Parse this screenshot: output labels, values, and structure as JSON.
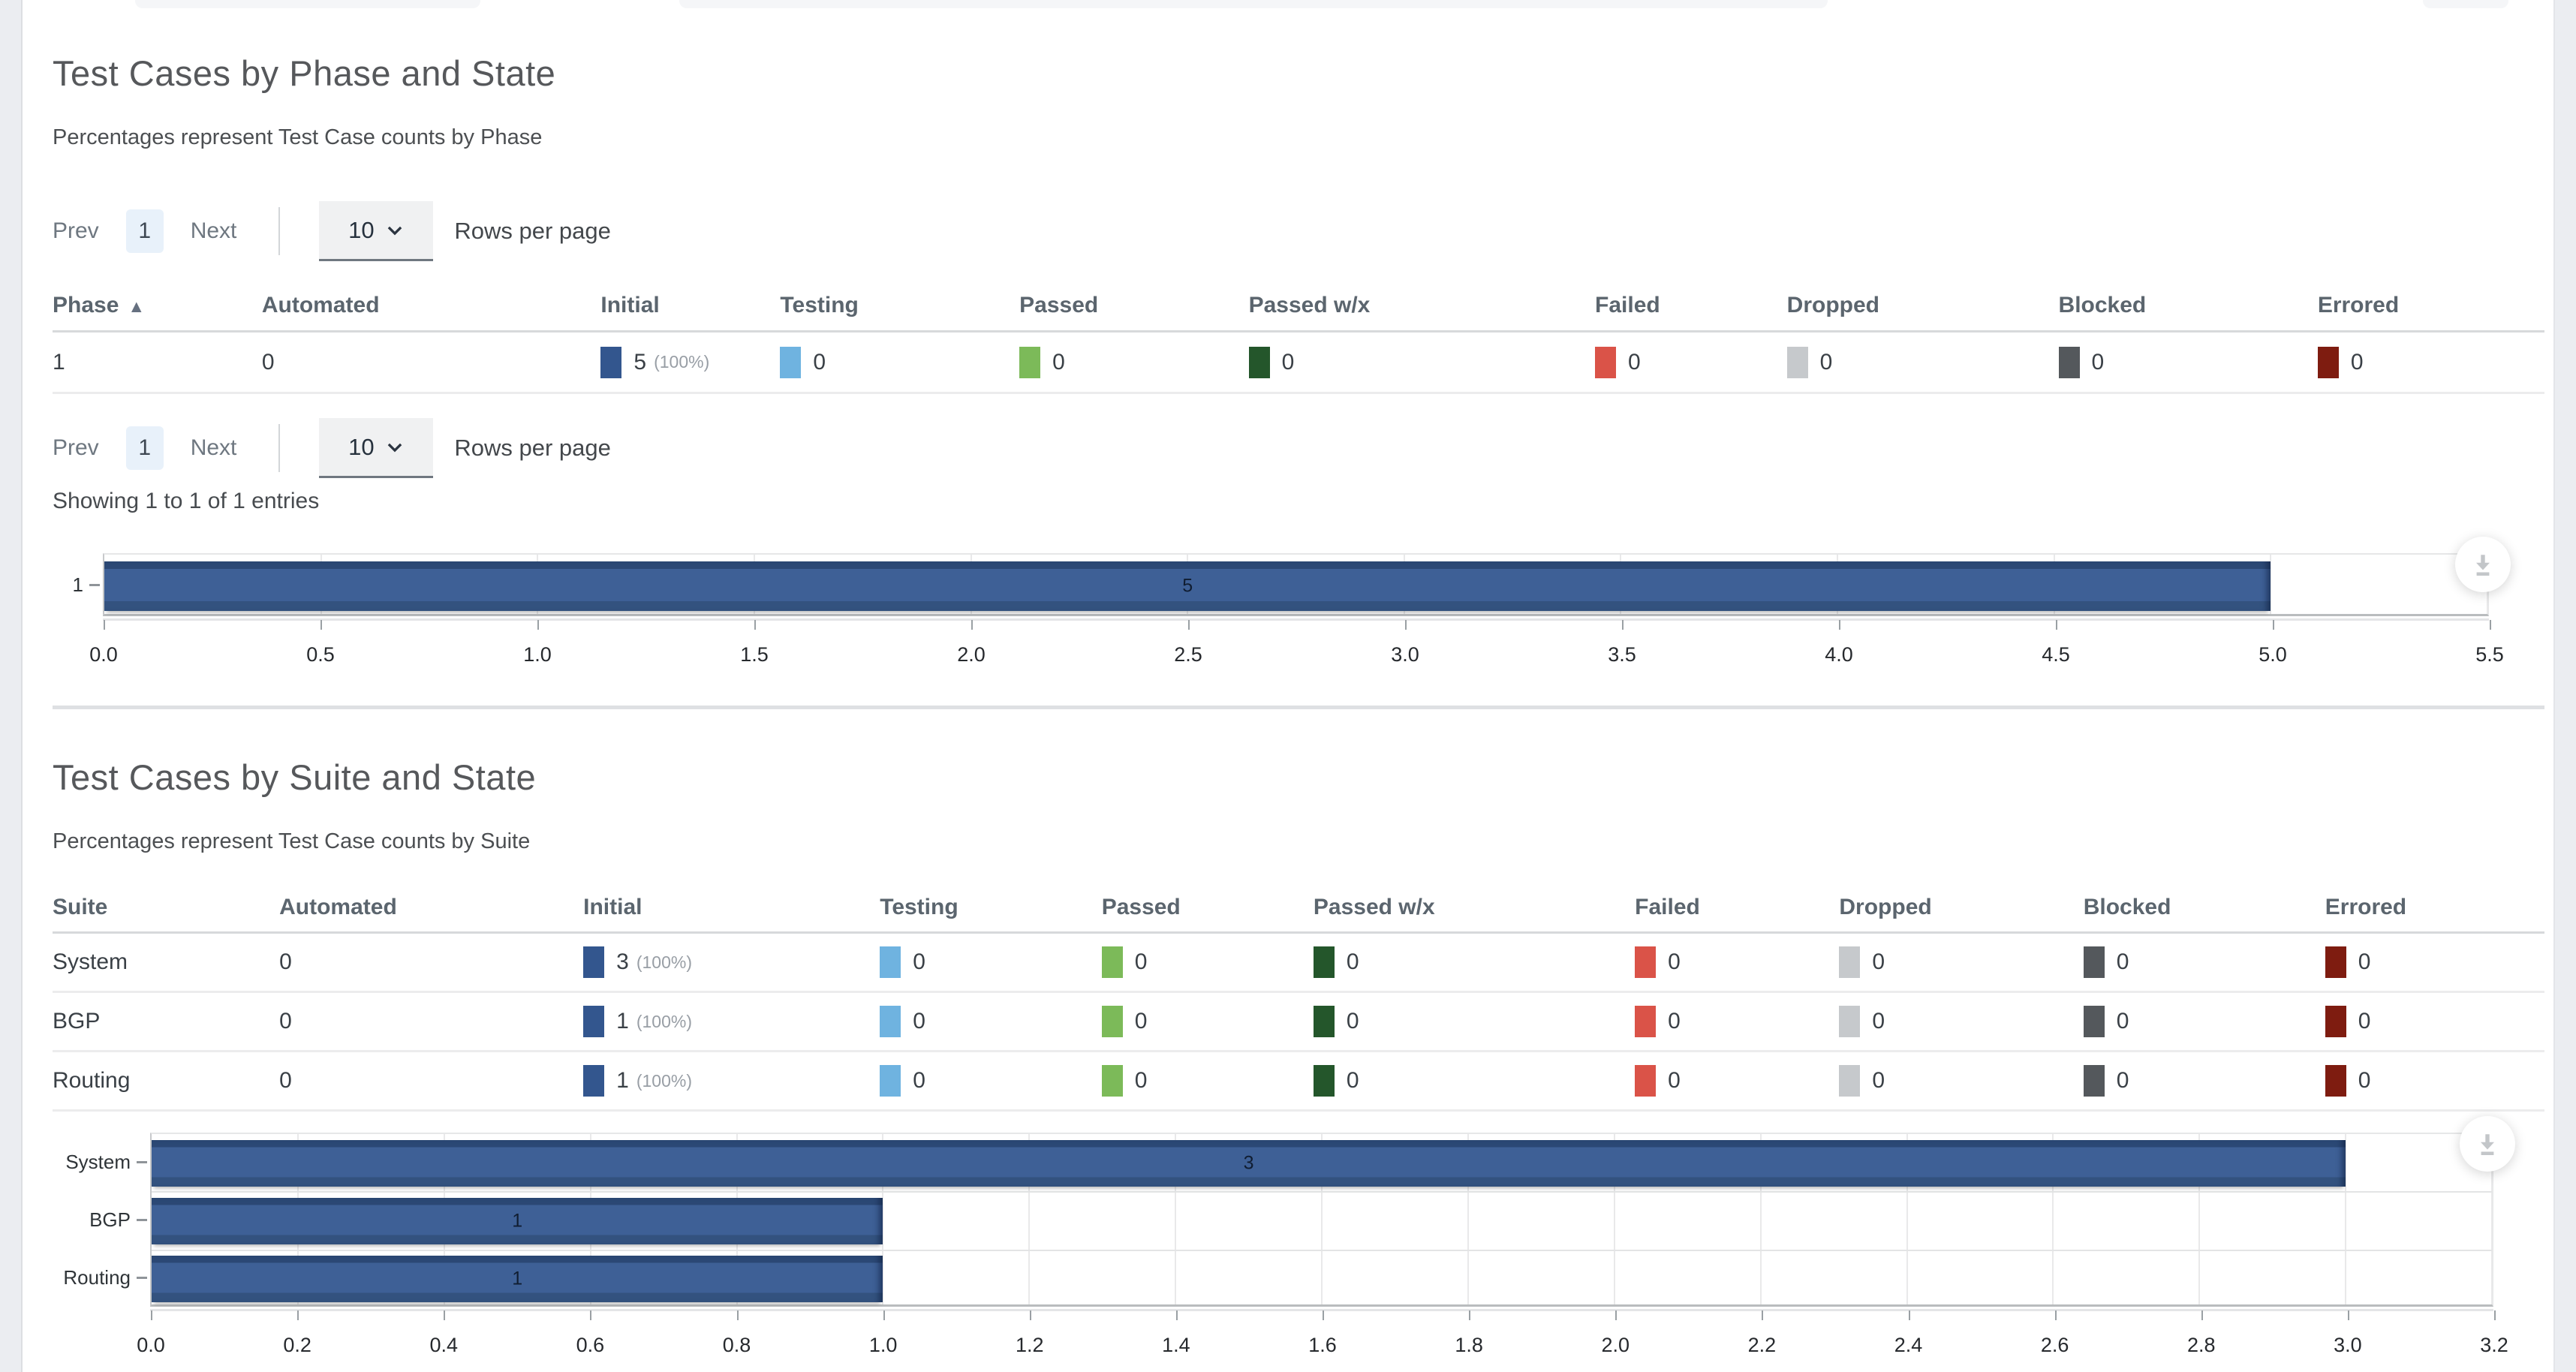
{
  "page": {
    "left_gutter_color": "#ebedf1",
    "divider_color": "#dee0e3",
    "bar_color": "#3e6096"
  },
  "states": [
    {
      "name": "Initial",
      "key": "initial",
      "color": "#33568e"
    },
    {
      "name": "Testing",
      "key": "testing",
      "color": "#6fb3e0"
    },
    {
      "name": "Passed",
      "key": "passed",
      "color": "#7cba59"
    },
    {
      "name": "Passed w/x",
      "key": "passed-wx",
      "color": "#24562b"
    },
    {
      "name": "Failed",
      "key": "failed",
      "color": "#da5348"
    },
    {
      "name": "Dropped",
      "key": "dropped",
      "color": "#c6c9cc"
    },
    {
      "name": "Blocked",
      "key": "blocked",
      "color": "#54585c"
    },
    {
      "name": "Errored",
      "key": "errored",
      "color": "#7e1c10"
    }
  ],
  "phase_section": {
    "title": "Test Cases by Phase and State",
    "subtitle": "Percentages represent Test Case counts by Phase",
    "pagination": {
      "prev_label": "Prev",
      "current_page": "1",
      "next_label": "Next",
      "page_size": "10",
      "rows_per_page_label": "Rows per page"
    },
    "summary_text": "Showing 1 to 1 of 1 entries",
    "table": {
      "columns": [
        "Phase",
        "Automated",
        "Initial",
        "Testing",
        "Passed",
        "Passed w/x",
        "Failed",
        "Dropped",
        "Blocked",
        "Errored"
      ],
      "sort": {
        "column": "Phase",
        "indicator": "▲"
      },
      "rows": [
        {
          "label": "1",
          "automated": "0",
          "state_counts": [
            {
              "count": "5",
              "pct": "(100%)"
            },
            {
              "count": "0"
            },
            {
              "count": "0"
            },
            {
              "count": "0"
            },
            {
              "count": "0"
            },
            {
              "count": "0"
            },
            {
              "count": "0"
            },
            {
              "count": "0"
            }
          ]
        }
      ]
    },
    "chart_data": {
      "type": "bar",
      "orientation": "horizontal",
      "title": "",
      "categories": [
        "1"
      ],
      "values": [
        5
      ],
      "value_labels": [
        "5"
      ],
      "xlim": [
        0,
        5.5
      ],
      "xtick_step": 0.5,
      "xticklabels": [
        "0.0",
        "0.5",
        "1.0",
        "1.5",
        "2.0",
        "2.5",
        "3.0",
        "3.5",
        "4.0",
        "4.5",
        "5.0",
        "5.5"
      ],
      "bar_color": "#3e6096",
      "grid": true,
      "legend": false
    }
  },
  "suite_section": {
    "title": "Test Cases by Suite and State",
    "subtitle": "Percentages represent Test Case counts by Suite",
    "table": {
      "columns": [
        "Suite",
        "Automated",
        "Initial",
        "Testing",
        "Passed",
        "Passed w/x",
        "Failed",
        "Dropped",
        "Blocked",
        "Errored"
      ],
      "sort": null,
      "rows": [
        {
          "label": "System",
          "automated": "0",
          "state_counts": [
            {
              "count": "3",
              "pct": "(100%)"
            },
            {
              "count": "0"
            },
            {
              "count": "0"
            },
            {
              "count": "0"
            },
            {
              "count": "0"
            },
            {
              "count": "0"
            },
            {
              "count": "0"
            },
            {
              "count": "0"
            }
          ]
        },
        {
          "label": "BGP",
          "automated": "0",
          "state_counts": [
            {
              "count": "1",
              "pct": "(100%)"
            },
            {
              "count": "0"
            },
            {
              "count": "0"
            },
            {
              "count": "0"
            },
            {
              "count": "0"
            },
            {
              "count": "0"
            },
            {
              "count": "0"
            },
            {
              "count": "0"
            }
          ]
        },
        {
          "label": "Routing",
          "automated": "0",
          "state_counts": [
            {
              "count": "1",
              "pct": "(100%)"
            },
            {
              "count": "0"
            },
            {
              "count": "0"
            },
            {
              "count": "0"
            },
            {
              "count": "0"
            },
            {
              "count": "0"
            },
            {
              "count": "0"
            },
            {
              "count": "0"
            }
          ]
        }
      ]
    },
    "chart_data": {
      "type": "bar",
      "orientation": "horizontal",
      "title": "",
      "categories": [
        "System",
        "BGP",
        "Routing"
      ],
      "values": [
        3,
        1,
        1
      ],
      "value_labels": [
        "3",
        "1",
        "1"
      ],
      "xlim": [
        0,
        3.2
      ],
      "xtick_step": 0.2,
      "xticklabels": [
        "0.0",
        "0.2",
        "0.4",
        "0.6",
        "0.8",
        "1.0",
        "1.2",
        "1.4",
        "1.6",
        "1.8",
        "2.0",
        "2.2",
        "2.4",
        "2.6",
        "2.8",
        "3.0",
        "3.2"
      ],
      "bar_color": "#3e6096",
      "grid": true,
      "legend": false
    }
  },
  "icons": {
    "chevron_down": "chevron-down-icon",
    "download": "download-icon",
    "sort_asc": "sort-ascending-icon"
  }
}
